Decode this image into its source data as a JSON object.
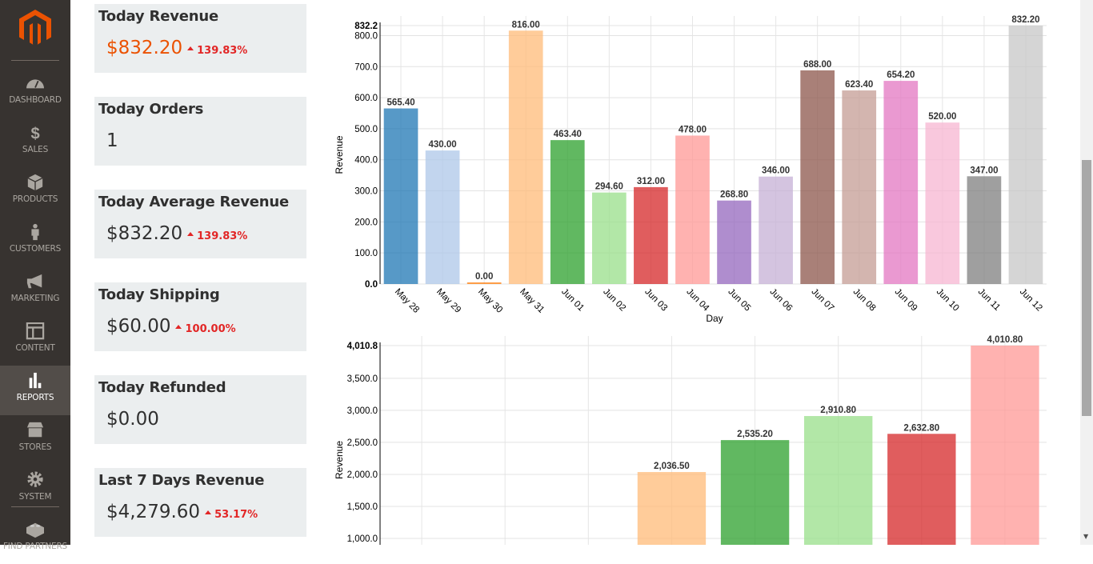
{
  "sidebar": {
    "items": [
      {
        "label": "DASHBOARD",
        "icon": "dashboard-icon"
      },
      {
        "label": "SALES",
        "icon": "dollar-icon"
      },
      {
        "label": "PRODUCTS",
        "icon": "box-icon"
      },
      {
        "label": "CUSTOMERS",
        "icon": "person-icon"
      },
      {
        "label": "MARKETING",
        "icon": "megaphone-icon"
      },
      {
        "label": "CONTENT",
        "icon": "layout-icon"
      },
      {
        "label": "REPORTS",
        "icon": "bar-chart-icon",
        "active": true
      },
      {
        "label": "STORES",
        "icon": "store-icon"
      },
      {
        "label": "SYSTEM",
        "icon": "gear-icon"
      },
      {
        "label": "FIND PARTNERS",
        "icon": "lego-block-icon"
      }
    ]
  },
  "cards": [
    {
      "title": "Today Revenue",
      "value": "$832.20",
      "change": "139.83%"
    },
    {
      "title": "Today Orders",
      "value": "1"
    },
    {
      "title": "Today Average Revenue",
      "value": "$832.20",
      "change": "139.83%"
    },
    {
      "title": "Today Shipping",
      "value": "$60.00",
      "change": "100.00%"
    },
    {
      "title": "Today Refunded",
      "value": "$0.00"
    },
    {
      "title": "Last 7 Days Revenue",
      "value": "$4,279.60",
      "change": "53.17%"
    }
  ],
  "colors": {
    "brand": "#eb5202",
    "up": "#e22626",
    "series": [
      "#1f77b4",
      "#aec7e8",
      "#ff7f0e",
      "#ffbb78",
      "#2ca02c",
      "#98df8a",
      "#d62728",
      "#ff9896",
      "#9467bd",
      "#c5b0d5",
      "#8c564b",
      "#c49c94",
      "#e377c2",
      "#f7b6d2",
      "#7f7f7f",
      "#c7c7c7"
    ]
  },
  "chart_data": [
    {
      "type": "bar",
      "xlabel": "Day",
      "ylabel": "Revenue",
      "ylim": [
        0,
        832.2
      ],
      "grid": true,
      "yticks": [
        "0.0",
        "100.0",
        "200.0",
        "300.0",
        "400.0",
        "500.0",
        "600.0",
        "700.0",
        "800.0",
        "832.2"
      ],
      "categories": [
        "May 28",
        "May 29",
        "May 30",
        "May 31",
        "Jun 01",
        "Jun 02",
        "Jun 03",
        "Jun 04",
        "Jun 05",
        "Jun 06",
        "Jun 07",
        "Jun 08",
        "Jun 09",
        "Jun 10",
        "Jun 11",
        "Jun 12"
      ],
      "values": [
        565.4,
        430,
        0,
        816,
        463.4,
        294.6,
        312,
        478,
        268.8,
        346,
        688,
        623.4,
        654.2,
        520,
        347,
        832.2
      ],
      "labels": [
        "565.40",
        "430.00",
        "0.00",
        "816.00",
        "463.40",
        "294.60",
        "312.00",
        "478.00",
        "268.80",
        "346.00",
        "688.00",
        "623.40",
        "654.20",
        "520.00",
        "347.00",
        "832.20"
      ]
    },
    {
      "type": "bar",
      "ylabel": "Revenue",
      "ylim": [
        1000,
        4010.8
      ],
      "grid": true,
      "yticks": [
        "1,000.0",
        "1,500.0",
        "2,000.0",
        "2,500.0",
        "3,000.0",
        "3,500.0",
        "4,010.8"
      ],
      "values": [
        null,
        null,
        null,
        2036.5,
        2535.2,
        2910.8,
        2632.8,
        4010.8
      ],
      "labels": [
        "",
        "",
        "",
        "2,036.50",
        "2,535.20",
        "2,910.80",
        "2,632.80",
        "4,010.80"
      ]
    }
  ]
}
